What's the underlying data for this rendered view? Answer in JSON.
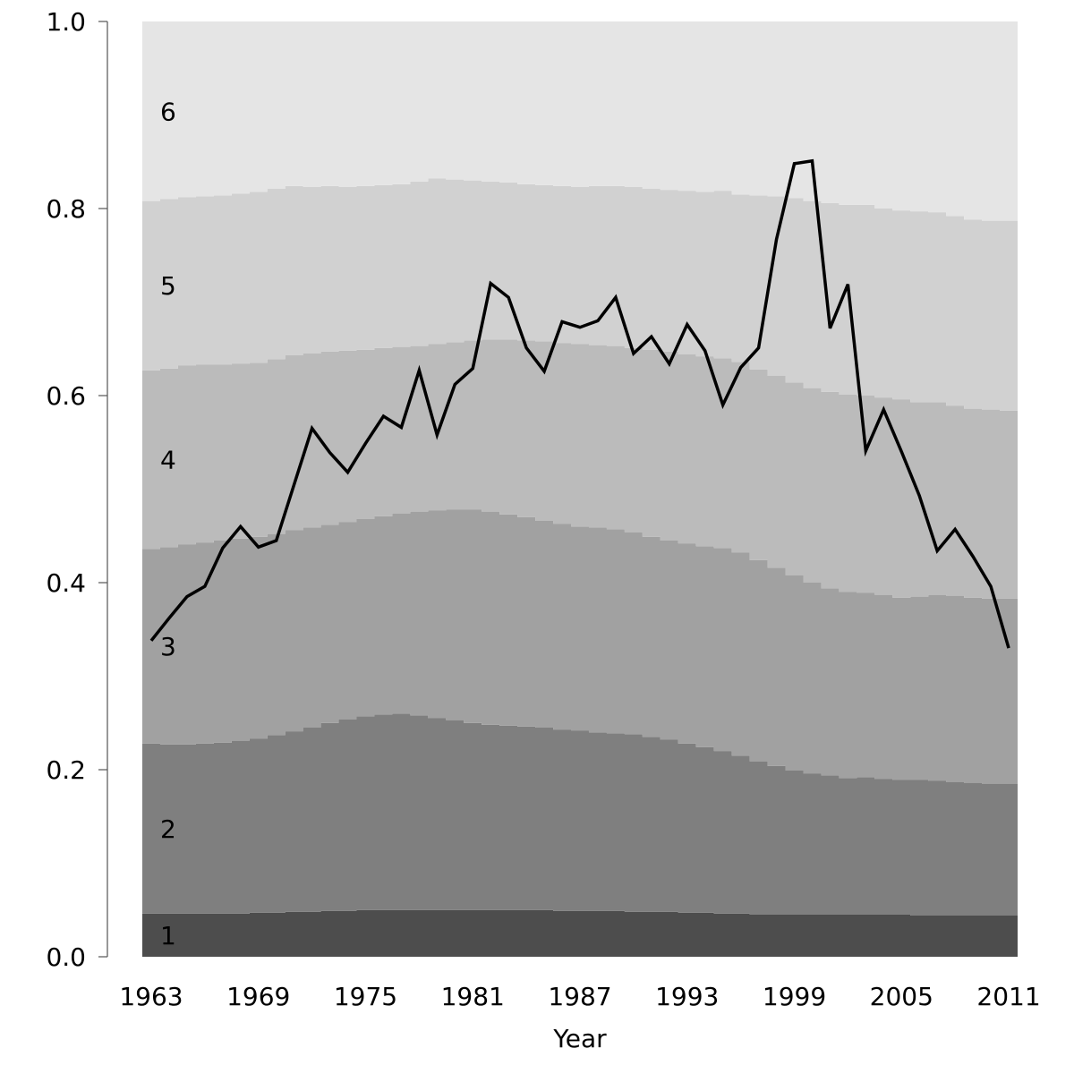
{
  "chart_data": {
    "type": "area",
    "xlabel": "Year",
    "ylabel": "",
    "ylim": [
      0,
      1
    ],
    "xlim": [
      1962.5,
      2011.5
    ],
    "yticks": [
      0.0,
      0.2,
      0.4,
      0.6,
      0.8,
      1.0
    ],
    "ytick_labels": [
      "0.0",
      "0.2",
      "0.4",
      "0.6",
      "0.8",
      "1.0"
    ],
    "xticks": [
      1963,
      1969,
      1975,
      1981,
      1987,
      1993,
      1999,
      2005,
      2011
    ],
    "xtick_labels": [
      "1963",
      "1969",
      "1975",
      "1981",
      "1987",
      "1993",
      "1999",
      "2005",
      "2011"
    ],
    "grid": false,
    "years": [
      1963,
      1964,
      1965,
      1966,
      1967,
      1968,
      1969,
      1970,
      1971,
      1972,
      1973,
      1974,
      1975,
      1976,
      1977,
      1978,
      1979,
      1980,
      1981,
      1982,
      1983,
      1984,
      1985,
      1986,
      1987,
      1988,
      1989,
      1990,
      1991,
      1992,
      1993,
      1994,
      1995,
      1996,
      1997,
      1998,
      1999,
      2000,
      2001,
      2002,
      2003,
      2004,
      2005,
      2006,
      2007,
      2008,
      2009,
      2010,
      2011
    ],
    "band_labels": [
      "1",
      "2",
      "3",
      "4",
      "5",
      "6"
    ],
    "band_colors": [
      "#4d4d4d",
      "#7f7f7f",
      "#a1a1a1",
      "#bbbbbb",
      "#d1d1d1",
      "#e5e5e5"
    ],
    "boundaries": [
      [
        0.046,
        0.046,
        0.046,
        0.046,
        0.046,
        0.046,
        0.047,
        0.047,
        0.048,
        0.048,
        0.049,
        0.049,
        0.05,
        0.05,
        0.05,
        0.05,
        0.05,
        0.05,
        0.05,
        0.05,
        0.05,
        0.05,
        0.05,
        0.049,
        0.049,
        0.049,
        0.049,
        0.048,
        0.048,
        0.048,
        0.047,
        0.047,
        0.046,
        0.046,
        0.045,
        0.045,
        0.045,
        0.045,
        0.045,
        0.045,
        0.045,
        0.045,
        0.045,
        0.044,
        0.044,
        0.044,
        0.044,
        0.044,
        0.044
      ],
      [
        0.228,
        0.227,
        0.227,
        0.228,
        0.229,
        0.231,
        0.233,
        0.237,
        0.241,
        0.245,
        0.25,
        0.254,
        0.257,
        0.259,
        0.26,
        0.258,
        0.255,
        0.253,
        0.25,
        0.248,
        0.247,
        0.246,
        0.245,
        0.243,
        0.242,
        0.24,
        0.239,
        0.238,
        0.235,
        0.232,
        0.228,
        0.224,
        0.22,
        0.215,
        0.209,
        0.204,
        0.199,
        0.196,
        0.194,
        0.191,
        0.192,
        0.19,
        0.189,
        0.189,
        0.188,
        0.187,
        0.186,
        0.185,
        0.185
      ],
      [
        0.436,
        0.438,
        0.441,
        0.443,
        0.445,
        0.447,
        0.449,
        0.452,
        0.456,
        0.459,
        0.462,
        0.465,
        0.468,
        0.471,
        0.474,
        0.476,
        0.477,
        0.478,
        0.478,
        0.476,
        0.473,
        0.47,
        0.466,
        0.463,
        0.46,
        0.459,
        0.457,
        0.454,
        0.449,
        0.445,
        0.442,
        0.439,
        0.437,
        0.432,
        0.424,
        0.416,
        0.408,
        0.4,
        0.394,
        0.39,
        0.389,
        0.387,
        0.384,
        0.385,
        0.387,
        0.386,
        0.384,
        0.383,
        0.383
      ],
      [
        0.627,
        0.629,
        0.632,
        0.633,
        0.633,
        0.634,
        0.635,
        0.639,
        0.643,
        0.645,
        0.647,
        0.648,
        0.649,
        0.651,
        0.652,
        0.653,
        0.655,
        0.657,
        0.659,
        0.66,
        0.66,
        0.659,
        0.658,
        0.656,
        0.655,
        0.654,
        0.653,
        0.651,
        0.649,
        0.647,
        0.644,
        0.642,
        0.64,
        0.636,
        0.628,
        0.621,
        0.614,
        0.608,
        0.604,
        0.601,
        0.6,
        0.598,
        0.596,
        0.593,
        0.593,
        0.589,
        0.586,
        0.585,
        0.584
      ],
      [
        0.808,
        0.81,
        0.812,
        0.813,
        0.814,
        0.816,
        0.818,
        0.821,
        0.824,
        0.823,
        0.824,
        0.823,
        0.824,
        0.825,
        0.826,
        0.829,
        0.832,
        0.831,
        0.83,
        0.829,
        0.828,
        0.826,
        0.825,
        0.824,
        0.823,
        0.824,
        0.824,
        0.823,
        0.821,
        0.82,
        0.819,
        0.818,
        0.819,
        0.815,
        0.814,
        0.813,
        0.811,
        0.808,
        0.806,
        0.804,
        0.804,
        0.8,
        0.798,
        0.797,
        0.796,
        0.792,
        0.788,
        0.787,
        0.787
      ]
    ],
    "series": [
      {
        "values": [
          0.338,
          0.362,
          0.385,
          0.396,
          0.437,
          0.46,
          0.438,
          0.445,
          0.505,
          0.565,
          0.539,
          0.518,
          0.549,
          0.578,
          0.566,
          0.627,
          0.558,
          0.612,
          0.629,
          0.72,
          0.705,
          0.651,
          0.626,
          0.679,
          0.673,
          0.68,
          0.705,
          0.645,
          0.663,
          0.634,
          0.676,
          0.648,
          0.59,
          0.63,
          0.651,
          0.767,
          0.848,
          0.851,
          0.672,
          0.719,
          0.541,
          0.585,
          0.54,
          0.493,
          0.434,
          0.457,
          0.428,
          0.396,
          0.33
        ]
      }
    ]
  }
}
